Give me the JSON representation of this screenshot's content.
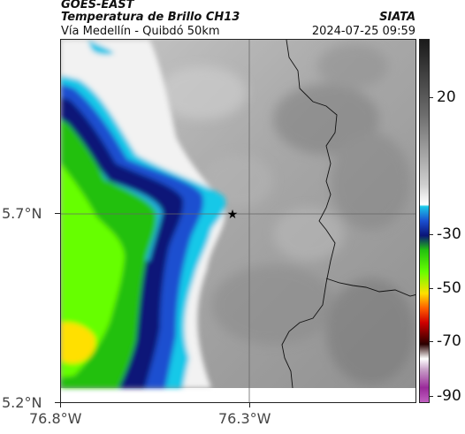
{
  "header": {
    "product": "GOES-EAST",
    "title": "Temperatura de Brillo CH13",
    "subtitle": "Vía Medellín - Quibdó 50km",
    "agency": "SIATA",
    "timestamp": "2024-07-25 09:59"
  },
  "axes": {
    "y_ticks": [
      "5.7°N",
      "5.2°N"
    ],
    "x_ticks": [
      "76.8°W",
      "76.3°W"
    ]
  },
  "colorbar": {
    "ticks": [
      "20",
      "-30",
      "-50",
      "-70",
      "-90"
    ]
  },
  "marker": {
    "symbol": "★",
    "icon": "star-marker-icon"
  },
  "colors": {
    "background_clouds": "#9a9a9a",
    "light_band": "#f2f2f2",
    "cyan": "#19c8e8",
    "blue": "#1a4fd0",
    "navy": "#0a1478",
    "green": "#22c010",
    "lime": "#66ff00",
    "yellow": "#ffe000"
  }
}
